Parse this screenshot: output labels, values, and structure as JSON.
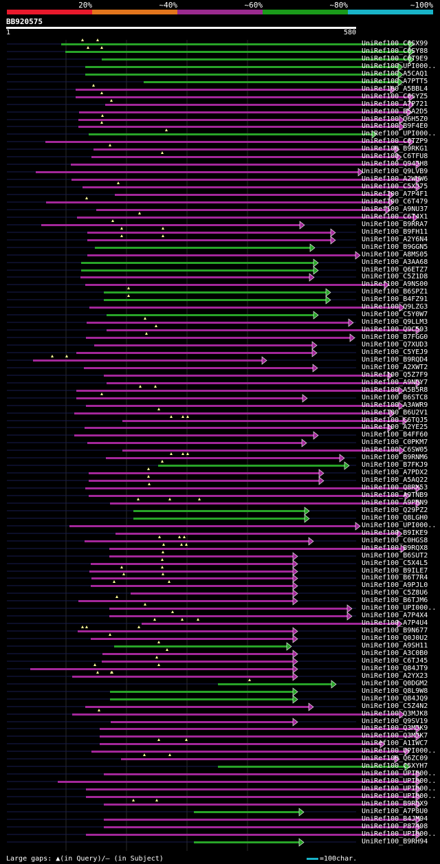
{
  "legend": {
    "labels": [
      "20%",
      "~40%",
      "~60%",
      "~80%",
      "~100%"
    ],
    "colors": [
      "#e8192c",
      "#e2751d",
      "#9a2a8e",
      "#1a9a1a",
      "#19b3c8"
    ]
  },
  "query": {
    "id": "BB920575",
    "start": "1",
    "end": "580"
  },
  "colors": {
    "purple": "#a3279a",
    "green": "#28a428",
    "line": "#181c50",
    "guide": "#2a2a2a",
    "marker": "#ffff99"
  },
  "hits": [
    {
      "id": "UniRef100_C6SX99",
      "color": "green",
      "s": 89,
      "e": 596,
      "m": [
        120,
        142
      ]
    },
    {
      "id": "UniRef100_C6SY88",
      "color": "green",
      "s": 95,
      "e": 596,
      "m": [
        128,
        148
      ]
    },
    {
      "id": "UniRef100_C6T9E9",
      "color": "green",
      "s": 148,
      "e": 596,
      "m": []
    },
    {
      "id": "UniRef100_UPI000..",
      "color": "green",
      "s": 124,
      "e": 580,
      "m": []
    },
    {
      "id": "UniRef100_A5CAQ1",
      "color": "green",
      "s": 124,
      "e": 580,
      "m": []
    },
    {
      "id": "UniRef100_A7PTT5",
      "color": "green",
      "s": 209,
      "e": 580,
      "m": []
    },
    {
      "id": "UniRef100_A5BBL4",
      "color": "purple",
      "s": 110,
      "e": 569,
      "m": [
        136
      ]
    },
    {
      "id": "UniRef100_C6SYZ5",
      "color": "purple",
      "s": 110,
      "e": 596,
      "m": [
        148
      ]
    },
    {
      "id": "UniRef100_A7P721",
      "color": "purple",
      "s": 153,
      "e": 596,
      "m": [
        162
      ]
    },
    {
      "id": "UniRef100_B5A2D5",
      "color": "purple",
      "s": 115,
      "e": 593,
      "m": []
    },
    {
      "id": "UniRef100_Q6H5Z0",
      "color": "purple",
      "s": 114,
      "e": 582,
      "m": [
        149
      ]
    },
    {
      "id": "UniRef100_B9F4E0",
      "color": "purple",
      "s": 114,
      "e": 582,
      "m": [
        148
      ]
    },
    {
      "id": "UniRef100_UPI000..",
      "color": "green",
      "s": 129,
      "e": 542,
      "m": [
        242
      ]
    },
    {
      "id": "UniRef100_C6TZP9",
      "color": "purple",
      "s": 66,
      "e": 596,
      "m": []
    },
    {
      "id": "UniRef100_B9RKG1",
      "color": "purple",
      "s": 136,
      "e": 575,
      "m": [
        160
      ]
    },
    {
      "id": "UniRef100_C6TFU8",
      "color": "purple",
      "s": 133,
      "e": 578,
      "m": [
        236
      ]
    },
    {
      "id": "UniRef100_Q94JH8",
      "color": "purple",
      "s": 103,
      "e": 606,
      "m": []
    },
    {
      "id": "UniRef100_Q9LVB9",
      "color": "purple",
      "s": 52,
      "e": 522,
      "m": []
    },
    {
      "id": "UniRef100_A2WUW6",
      "color": "purple",
      "s": 104,
      "e": 606,
      "m": []
    },
    {
      "id": "UniRef100_C5XJ75",
      "color": "purple",
      "s": 120,
      "e": 606,
      "m": [
        172
      ]
    },
    {
      "id": "UniRef100_A7P4F1",
      "color": "purple",
      "s": 167,
      "e": 567,
      "m": []
    },
    {
      "id": "UniRef100_C6T479",
      "color": "purple",
      "s": 67,
      "e": 567,
      "m": [
        126
      ]
    },
    {
      "id": "UniRef100_A9NU37",
      "color": "purple",
      "s": 140,
      "e": 562,
      "m": []
    },
    {
      "id": "UniRef100_C6T4X1",
      "color": "purple",
      "s": 112,
      "e": 602,
      "m": [
        203
      ]
    },
    {
      "id": "UniRef100_B9RRA7",
      "color": "purple",
      "s": 60,
      "e": 437,
      "m": [
        164
      ]
    },
    {
      "id": "UniRef100_B9FH11",
      "color": "purple",
      "s": 127,
      "e": 482,
      "m": [
        177,
        237
      ]
    },
    {
      "id": "UniRef100_A2Y6N4",
      "color": "purple",
      "s": 127,
      "e": 482,
      "m": [
        177,
        237
      ]
    },
    {
      "id": "UniRef100_B9GGN5",
      "color": "green",
      "s": 138,
      "e": 452,
      "m": []
    },
    {
      "id": "UniRef100_A8MS05",
      "color": "purple",
      "s": 127,
      "e": 518,
      "m": []
    },
    {
      "id": "UniRef100_A3AA68",
      "color": "green",
      "s": 118,
      "e": 457,
      "m": []
    },
    {
      "id": "UniRef100_Q6ETZ7",
      "color": "green",
      "s": 118,
      "e": 457,
      "m": []
    },
    {
      "id": "UniRef100_C5Z1D8",
      "color": "purple",
      "s": 117,
      "e": 451,
      "m": []
    },
    {
      "id": "UniRef100_A9NS00",
      "color": "purple",
      "s": 124,
      "e": 560,
      "m": []
    },
    {
      "id": "UniRef100_B6SPZ1",
      "color": "green",
      "s": 151,
      "e": 475,
      "m": [
        187
      ]
    },
    {
      "id": "UniRef100_B4FZ91",
      "color": "green",
      "s": 151,
      "e": 475,
      "m": [
        187
      ]
    },
    {
      "id": "UniRef100_Q9LZG3",
      "color": "purple",
      "s": 130,
      "e": 582,
      "m": []
    },
    {
      "id": "UniRef100_C5Y0W7",
      "color": "green",
      "s": 155,
      "e": 457,
      "m": []
    },
    {
      "id": "UniRef100_Q9LLM3",
      "color": "purple",
      "s": 126,
      "e": 508,
      "m": [
        211
      ]
    },
    {
      "id": "UniRef100_Q9C593",
      "color": "purple",
      "s": 155,
      "e": 606,
      "m": [
        227
      ]
    },
    {
      "id": "UniRef100_B7FGG0",
      "color": "purple",
      "s": 125,
      "e": 510,
      "m": [
        213
      ]
    },
    {
      "id": "UniRef100_Q7XUD3",
      "color": "purple",
      "s": 137,
      "e": 455,
      "m": []
    },
    {
      "id": "UniRef100_C5YEJ9",
      "color": "purple",
      "s": 111,
      "e": 455,
      "m": []
    },
    {
      "id": "UniRef100_B9RQD4",
      "color": "purple",
      "s": 48,
      "e": 382,
      "m": [
        76,
        97
      ]
    },
    {
      "id": "UniRef100_A2XWT2",
      "color": "purple",
      "s": 122,
      "e": 456,
      "m": []
    },
    {
      "id": "UniRef100_Q5Z7F9",
      "color": "purple",
      "s": 151,
      "e": 565,
      "m": []
    },
    {
      "id": "UniRef100_A9NQY7",
      "color": "purple",
      "s": 155,
      "e": 606,
      "m": []
    },
    {
      "id": "UniRef100_A5B5R8",
      "color": "purple",
      "s": 111,
      "e": 581,
      "m": [
        204,
        226
      ]
    },
    {
      "id": "UniRef100_B6STC8",
      "color": "purple",
      "s": 111,
      "e": 441,
      "m": [
        148
      ]
    },
    {
      "id": "UniRef100_A3AWR9",
      "color": "purple",
      "s": 125,
      "e": 581,
      "m": []
    },
    {
      "id": "UniRef100_B6U2V1",
      "color": "purple",
      "s": 108,
      "e": 568,
      "m": [
        231
      ]
    },
    {
      "id": "UniRef100_C6TQJ5",
      "color": "purple",
      "s": 178,
      "e": 587,
      "m": [
        249,
        266,
        273
      ]
    },
    {
      "id": "UniRef100_A2YE25",
      "color": "purple",
      "s": 123,
      "e": 565,
      "m": []
    },
    {
      "id": "UniRef100_B4FF60",
      "color": "purple",
      "s": 108,
      "e": 457,
      "m": []
    },
    {
      "id": "UniRef100_C0PKM7",
      "color": "purple",
      "s": 127,
      "e": 440,
      "m": []
    },
    {
      "id": "UniRef100_C6SW05",
      "color": "purple",
      "s": 178,
      "e": 582,
      "m": []
    },
    {
      "id": "UniRef100_B9RNM6",
      "color": "purple",
      "s": 154,
      "e": 495,
      "m": [
        249,
        266,
        273
      ]
    },
    {
      "id": "UniRef100_B7FKJ9",
      "color": "green",
      "s": 230,
      "e": 502,
      "m": [
        236
      ]
    },
    {
      "id": "UniRef100_A7PDX2",
      "color": "purple",
      "s": 129,
      "e": 465,
      "m": [
        216
      ]
    },
    {
      "id": "UniRef100_A5AQ22",
      "color": "purple",
      "s": 129,
      "e": 465,
      "m": [
        216
      ]
    },
    {
      "id": "UniRef100_Q8RX53",
      "color": "purple",
      "s": 124,
      "e": 606,
      "m": [
        217
      ]
    },
    {
      "id": "UniRef100_A9TNB9",
      "color": "purple",
      "s": 129,
      "e": 590,
      "m": []
    },
    {
      "id": "UniRef100_A9PBN9",
      "color": "purple",
      "s": 160,
      "e": 606,
      "m": [
        201,
        247,
        290
      ]
    },
    {
      "id": "UniRef100_Q29PZ2",
      "color": "green",
      "s": 194,
      "e": 444,
      "m": []
    },
    {
      "id": "UniRef100_Q8LGH0",
      "color": "green",
      "s": 194,
      "e": 444,
      "m": []
    },
    {
      "id": "UniRef100_UPI000..",
      "color": "purple",
      "s": 101,
      "e": 518,
      "m": []
    },
    {
      "id": "UniRef100_B9IKE9",
      "color": "purple",
      "s": 168,
      "e": 579,
      "m": []
    },
    {
      "id": "UniRef100_C0HGS8",
      "color": "purple",
      "s": 123,
      "e": 450,
      "m": [
        232,
        261,
        268
      ]
    },
    {
      "id": "UniRef100_B9RQX8",
      "color": "purple",
      "s": 159,
      "e": 584,
      "m": [
        238,
        264,
        271
      ]
    },
    {
      "id": "UniRef100_B6SUT2",
      "color": "purple",
      "s": 159,
      "e": 427,
      "m": [
        237
      ]
    },
    {
      "id": "UniRef100_C5X4L5",
      "color": "purple",
      "s": 132,
      "e": 427,
      "m": [
        236
      ]
    },
    {
      "id": "UniRef100_B9ILE7",
      "color": "purple",
      "s": 130,
      "e": 427,
      "m": [
        177,
        236
      ]
    },
    {
      "id": "UniRef100_B6T7R4",
      "color": "purple",
      "s": 133,
      "e": 427,
      "m": [
        180,
        237
      ]
    },
    {
      "id": "UniRef100_A9PJL0",
      "color": "purple",
      "s": 132,
      "e": 427,
      "m": [
        166,
        246
      ]
    },
    {
      "id": "UniRef100_C5Z8U6",
      "color": "purple",
      "s": 190,
      "e": 427,
      "m": []
    },
    {
      "id": "UniRef100_B6TJM6",
      "color": "purple",
      "s": 114,
      "e": 427,
      "m": [
        170
      ]
    },
    {
      "id": "UniRef100_UPI000..",
      "color": "purple",
      "s": 159,
      "e": 506,
      "m": [
        211
      ]
    },
    {
      "id": "UniRef100_A7P4X4",
      "color": "purple",
      "s": 159,
      "e": 506,
      "m": [
        251
      ]
    },
    {
      "id": "UniRef100_A7P4U4",
      "color": "purple",
      "s": 206,
      "e": 579,
      "m": [
        225,
        265,
        288
      ]
    },
    {
      "id": "UniRef100_B9N677",
      "color": "purple",
      "s": 113,
      "e": 427,
      "m": [
        120,
        126,
        202
      ]
    },
    {
      "id": "UniRef100_Q0J0U2",
      "color": "purple",
      "s": 132,
      "e": 427,
      "m": [
        160
      ]
    },
    {
      "id": "UniRef100_A9SH11",
      "color": "green",
      "s": 166,
      "e": 418,
      "m": [
        231
      ]
    },
    {
      "id": "UniRef100_A3C0B0",
      "color": "purple",
      "s": 149,
      "e": 427,
      "m": [
        243
      ]
    },
    {
      "id": "UniRef100_C6TJ45",
      "color": "purple",
      "s": 148,
      "e": 427,
      "m": [
        228
      ]
    },
    {
      "id": "UniRef100_Q84JT9",
      "color": "purple",
      "s": 44,
      "e": 427,
      "m": [
        138,
        231
      ]
    },
    {
      "id": "UniRef100_A2YX23",
      "color": "purple",
      "s": 105,
      "e": 427,
      "m": [
        142,
        162,
        163
      ]
    },
    {
      "id": "UniRef100_Q0DGM2",
      "color": "green",
      "s": 317,
      "e": 483,
      "m": [
        363
      ]
    },
    {
      "id": "UniRef100_Q8L9W8",
      "color": "green",
      "s": 160,
      "e": 427,
      "m": []
    },
    {
      "id": "UniRef100_Q84JQ9",
      "color": "green",
      "s": 160,
      "e": 427,
      "m": []
    },
    {
      "id": "UniRef100_C5Z4N2",
      "color": "purple",
      "s": 124,
      "e": 450,
      "m": []
    },
    {
      "id": "UniRef100_Q3MJK8",
      "color": "purple",
      "s": 105,
      "e": 582,
      "m": [
        144
      ]
    },
    {
      "id": "UniRef100_Q9SV19",
      "color": "purple",
      "s": 161,
      "e": 427,
      "m": []
    },
    {
      "id": "UniRef100_Q3MJK9",
      "color": "purple",
      "s": 145,
      "e": 606,
      "m": []
    },
    {
      "id": "UniRef100_Q3MJK7",
      "color": "purple",
      "s": 145,
      "e": 606,
      "m": []
    },
    {
      "id": "UniRef100_A1IWC7",
      "color": "purple",
      "s": 145,
      "e": 554,
      "m": [
        231,
        271
      ]
    },
    {
      "id": "UniRef100_UPI000..",
      "color": "purple",
      "s": 133,
      "e": 590,
      "m": []
    },
    {
      "id": "UniRef100_Q6ZC09",
      "color": "purple",
      "s": 176,
      "e": 575,
      "m": [
        210,
        247
      ]
    },
    {
      "id": "UniRef100_C5XYH7",
      "color": "green",
      "s": 317,
      "e": 590,
      "m": []
    },
    {
      "id": "UniRef100_UPI000..",
      "color": "purple",
      "s": 151,
      "e": 606,
      "m": []
    },
    {
      "id": "UniRef100_UPI000..",
      "color": "purple",
      "s": 84,
      "e": 606,
      "m": []
    },
    {
      "id": "UniRef100_UPI000..",
      "color": "purple",
      "s": 125,
      "e": 606,
      "m": []
    },
    {
      "id": "UniRef100_UPI000..",
      "color": "purple",
      "s": 125,
      "e": 606,
      "m": []
    },
    {
      "id": "UniRef100_B9RQX9",
      "color": "purple",
      "s": 151,
      "e": 606,
      "m": [
        194,
        228
      ]
    },
    {
      "id": "UniRef100_A7P8U0",
      "color": "green",
      "s": 282,
      "e": 436,
      "m": []
    },
    {
      "id": "UniRef100_B4JM94",
      "color": "purple",
      "s": 151,
      "e": 606,
      "m": []
    },
    {
      "id": "UniRef100_P87498",
      "color": "purple",
      "s": 151,
      "e": 606,
      "m": []
    },
    {
      "id": "UniRef100_UPI000..",
      "color": "purple",
      "s": 125,
      "e": 606,
      "m": []
    },
    {
      "id": "UniRef100_B9RH94",
      "color": "green",
      "s": 282,
      "e": 436,
      "m": []
    }
  ],
  "footer": {
    "text": "Large gaps: ▲(in Query)/— (in Subject)",
    "scale": "=100char."
  }
}
